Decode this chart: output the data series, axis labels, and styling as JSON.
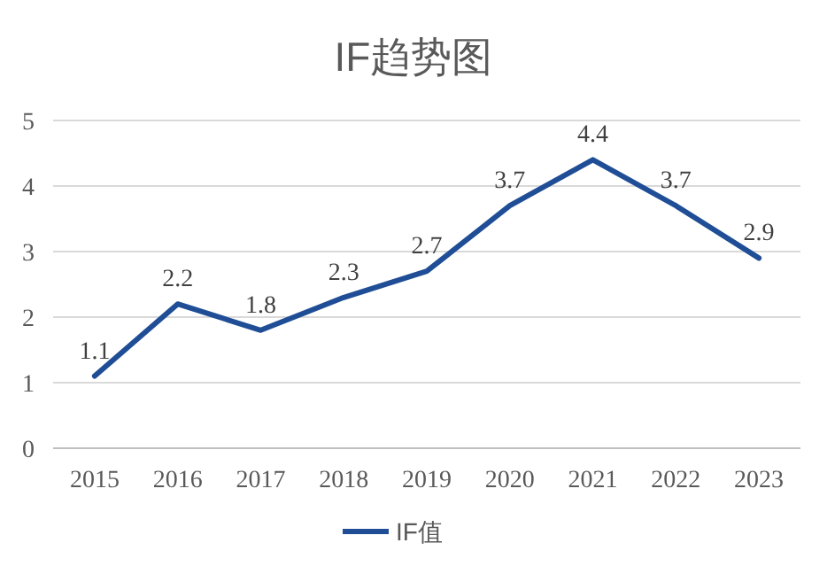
{
  "chart_data": {
    "type": "line",
    "title": "IF趋势图",
    "categories": [
      "2015",
      "2016",
      "2017",
      "2018",
      "2019",
      "2020",
      "2021",
      "2022",
      "2023"
    ],
    "series": [
      {
        "name": "IF值",
        "color": "#1f4e96",
        "values": [
          1.1,
          2.2,
          1.8,
          2.3,
          2.7,
          3.7,
          4.4,
          3.7,
          2.9
        ]
      }
    ],
    "ylim": [
      0,
      5
    ],
    "yticks": [
      0,
      1,
      2,
      3,
      4,
      5
    ],
    "grid": "y",
    "data_labels": true,
    "legend": "bottom"
  }
}
